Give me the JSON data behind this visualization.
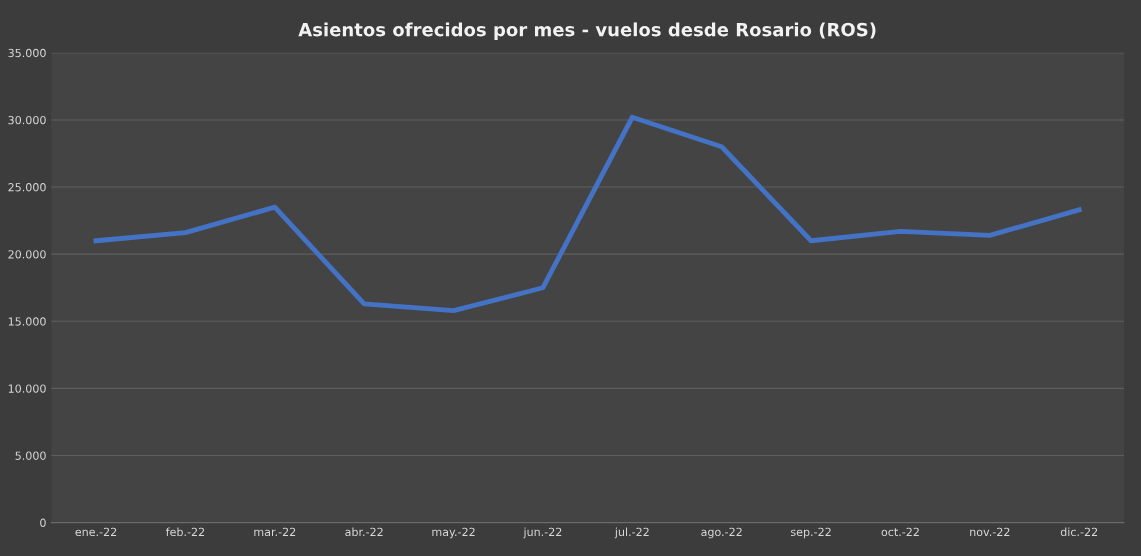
{
  "chart_data": {
    "type": "line",
    "title": "Asientos ofrecidos por mes - vuelos desde Rosario (ROS)",
    "categories": [
      "ene.-22",
      "feb.-22",
      "mar.-22",
      "abr.-22",
      "may.-22",
      "jun.-22",
      "jul.-22",
      "ago.-22",
      "sep.-22",
      "oct.-22",
      "nov.-22",
      "dic.-22"
    ],
    "series": [
      {
        "color": "#4472c4",
        "values": [
          21000,
          21600,
          23500,
          16300,
          15800,
          17500,
          30200,
          28000,
          21000,
          21700,
          21400,
          23300
        ]
      }
    ],
    "ylim": [
      0,
      35000
    ],
    "yticks": [
      {
        "value": 0,
        "label": "0"
      },
      {
        "value": 5000,
        "label": "5.000"
      },
      {
        "value": 10000,
        "label": "10.000"
      },
      {
        "value": 15000,
        "label": "15.000"
      },
      {
        "value": 20000,
        "label": "20.000"
      },
      {
        "value": 25000,
        "label": "25.000"
      },
      {
        "value": 30000,
        "label": "30.000"
      },
      {
        "value": 35000,
        "label": "35.000"
      }
    ],
    "grid": "y",
    "marker": "none",
    "line_style": "solid",
    "legend": false
  }
}
